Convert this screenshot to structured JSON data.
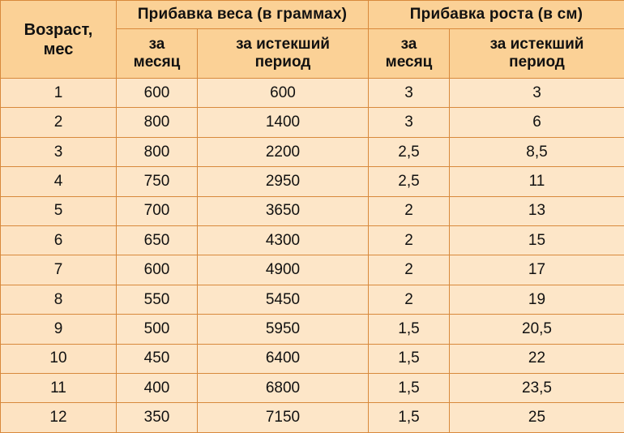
{
  "table": {
    "age_header": [
      "Возраст,",
      "мес"
    ],
    "weight_header": "Прибавка веса (в граммах)",
    "height_header": "Прибавка роста (в см)",
    "sub_headers": {
      "weight_month": [
        "за",
        "месяц"
      ],
      "weight_total": [
        "за истекший",
        "период"
      ],
      "height_month": [
        "за",
        "месяц"
      ],
      "height_total": [
        "за истекший",
        "период"
      ]
    },
    "rows": [
      {
        "age": "1",
        "weight_month": "600",
        "weight_total": "600",
        "height_month": "3",
        "height_total": "3"
      },
      {
        "age": "2",
        "weight_month": "800",
        "weight_total": "1400",
        "height_month": "3",
        "height_total": "6"
      },
      {
        "age": "3",
        "weight_month": "800",
        "weight_total": "2200",
        "height_month": "2,5",
        "height_total": "8,5"
      },
      {
        "age": "4",
        "weight_month": "750",
        "weight_total": "2950",
        "height_month": "2,5",
        "height_total": "11"
      },
      {
        "age": "5",
        "weight_month": "700",
        "weight_total": "3650",
        "height_month": "2",
        "height_total": "13"
      },
      {
        "age": "6",
        "weight_month": "650",
        "weight_total": "4300",
        "height_month": "2",
        "height_total": "15"
      },
      {
        "age": "7",
        "weight_month": "600",
        "weight_total": "4900",
        "height_month": "2",
        "height_total": "17"
      },
      {
        "age": "8",
        "weight_month": "550",
        "weight_total": "5450",
        "height_month": "2",
        "height_total": "19"
      },
      {
        "age": "9",
        "weight_month": "500",
        "weight_total": "5950",
        "height_month": "1,5",
        "height_total": "20,5"
      },
      {
        "age": "10",
        "weight_month": "450",
        "weight_total": "6400",
        "height_month": "1,5",
        "height_total": "22"
      },
      {
        "age": "11",
        "weight_month": "400",
        "weight_total": "6800",
        "height_month": "1,5",
        "height_total": "23,5"
      },
      {
        "age": "12",
        "weight_month": "350",
        "weight_total": "7150",
        "height_month": "1,5",
        "height_total": "25"
      }
    ],
    "colors": {
      "header_bg": "#fbd196",
      "cell_bg": "#fde6c8",
      "border": "#d8893c"
    }
  }
}
